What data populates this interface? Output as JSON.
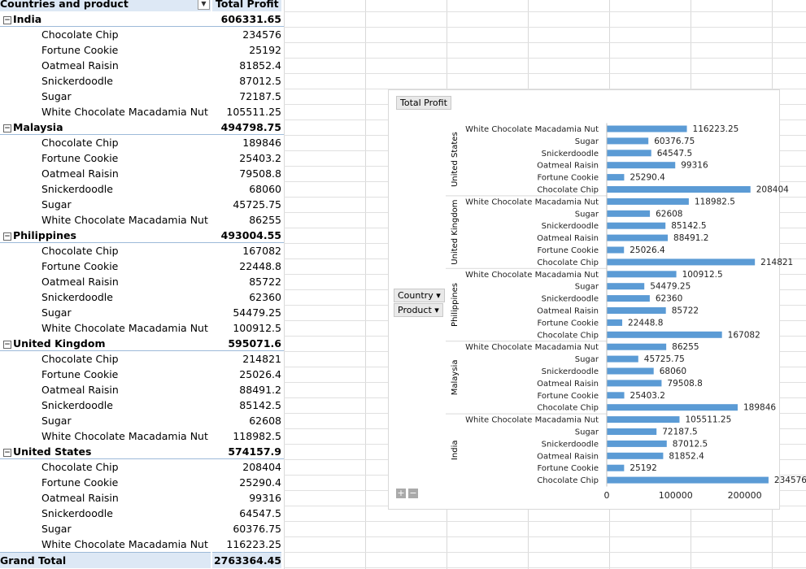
{
  "pivot": {
    "header": {
      "row_label": "Countries and product",
      "value_label": "Total Profit"
    },
    "countries": [
      {
        "name": "India",
        "total": "606331.65",
        "items": [
          {
            "product": "Chocolate Chip",
            "value": "234576"
          },
          {
            "product": "Fortune Cookie",
            "value": "25192"
          },
          {
            "product": "Oatmeal Raisin",
            "value": "81852.4"
          },
          {
            "product": "Snickerdoodle",
            "value": "87012.5"
          },
          {
            "product": "Sugar",
            "value": "72187.5"
          },
          {
            "product": "White Chocolate Macadamia Nut",
            "value": "105511.25"
          }
        ]
      },
      {
        "name": "Malaysia",
        "total": "494798.75",
        "items": [
          {
            "product": "Chocolate Chip",
            "value": "189846"
          },
          {
            "product": "Fortune Cookie",
            "value": "25403.2"
          },
          {
            "product": "Oatmeal Raisin",
            "value": "79508.8"
          },
          {
            "product": "Snickerdoodle",
            "value": "68060"
          },
          {
            "product": "Sugar",
            "value": "45725.75"
          },
          {
            "product": "White Chocolate Macadamia Nut",
            "value": "86255"
          }
        ]
      },
      {
        "name": "Philippines",
        "total": "493004.55",
        "items": [
          {
            "product": "Chocolate Chip",
            "value": "167082"
          },
          {
            "product": "Fortune Cookie",
            "value": "22448.8"
          },
          {
            "product": "Oatmeal Raisin",
            "value": "85722"
          },
          {
            "product": "Snickerdoodle",
            "value": "62360"
          },
          {
            "product": "Sugar",
            "value": "54479.25"
          },
          {
            "product": "White Chocolate Macadamia Nut",
            "value": "100912.5"
          }
        ]
      },
      {
        "name": "United Kingdom",
        "total": "595071.6",
        "items": [
          {
            "product": "Chocolate Chip",
            "value": "214821"
          },
          {
            "product": "Fortune Cookie",
            "value": "25026.4"
          },
          {
            "product": "Oatmeal Raisin",
            "value": "88491.2"
          },
          {
            "product": "Snickerdoodle",
            "value": "85142.5"
          },
          {
            "product": "Sugar",
            "value": "62608"
          },
          {
            "product": "White Chocolate Macadamia Nut",
            "value": "118982.5"
          }
        ]
      },
      {
        "name": "United States",
        "total": "574157.9",
        "items": [
          {
            "product": "Chocolate Chip",
            "value": "208404"
          },
          {
            "product": "Fortune Cookie",
            "value": "25290.4"
          },
          {
            "product": "Oatmeal Raisin",
            "value": "99316"
          },
          {
            "product": "Snickerdoodle",
            "value": "64547.5"
          },
          {
            "product": "Sugar",
            "value": "60376.75"
          },
          {
            "product": "White Chocolate Macadamia Nut",
            "value": "116223.25"
          }
        ]
      }
    ],
    "grand_total": {
      "label": "Grand Total",
      "value": "2763364.45"
    }
  },
  "chart": {
    "value_button": "Total Profit",
    "axis_buttons": [
      "Country",
      "Product"
    ],
    "zoom_buttons": [
      "+",
      "−"
    ],
    "bar_color": "#5b9bd5"
  },
  "chart_data": {
    "type": "bar",
    "orientation": "horizontal",
    "xlim": [
      0,
      250000
    ],
    "xticks": [
      "0",
      "100000",
      "200000"
    ],
    "groups": [
      {
        "name": "United States",
        "categories": [
          "White Chocolate Macadamia Nut",
          "Sugar",
          "Snickerdoodle",
          "Oatmeal Raisin",
          "Fortune Cookie",
          "Chocolate Chip"
        ],
        "values": [
          116223.25,
          60376.75,
          64547.5,
          99316,
          25290.4,
          208404
        ],
        "labels": [
          "116223.25",
          "60376.75",
          "64547.5",
          "99316",
          "25290.4",
          "208404"
        ]
      },
      {
        "name": "United Kingdom",
        "categories": [
          "White Chocolate Macadamia Nut",
          "Sugar",
          "Snickerdoodle",
          "Oatmeal Raisin",
          "Fortune Cookie",
          "Chocolate Chip"
        ],
        "values": [
          118982.5,
          62608,
          85142.5,
          88491.2,
          25026.4,
          214821
        ],
        "labels": [
          "118982.5",
          "62608",
          "85142.5",
          "88491.2",
          "25026.4",
          "214821"
        ]
      },
      {
        "name": "Philippines",
        "categories": [
          "White Chocolate Macadamia Nut",
          "Sugar",
          "Snickerdoodle",
          "Oatmeal Raisin",
          "Fortune Cookie",
          "Chocolate Chip"
        ],
        "values": [
          100912.5,
          54479.25,
          62360,
          85722,
          22448.8,
          167082
        ],
        "labels": [
          "100912.5",
          "54479.25",
          "62360",
          "85722",
          "22448.8",
          "167082"
        ]
      },
      {
        "name": "Malaysia",
        "categories": [
          "White Chocolate Macadamia Nut",
          "Sugar",
          "Snickerdoodle",
          "Oatmeal Raisin",
          "Fortune Cookie",
          "Chocolate Chip"
        ],
        "values": [
          86255,
          45725.75,
          68060,
          79508.8,
          25403.2,
          189846
        ],
        "labels": [
          "86255",
          "45725.75",
          "68060",
          "79508.8",
          "25403.2",
          "189846"
        ]
      },
      {
        "name": "India",
        "categories": [
          "White Chocolate Macadamia Nut",
          "Sugar",
          "Snickerdoodle",
          "Oatmeal Raisin",
          "Fortune Cookie",
          "Chocolate Chip"
        ],
        "values": [
          105511.25,
          72187.5,
          87012.5,
          81852.4,
          25192,
          234576
        ],
        "labels": [
          "105511.25",
          "72187.5",
          "87012.5",
          "81852.4",
          "25192",
          "234576"
        ]
      }
    ]
  }
}
